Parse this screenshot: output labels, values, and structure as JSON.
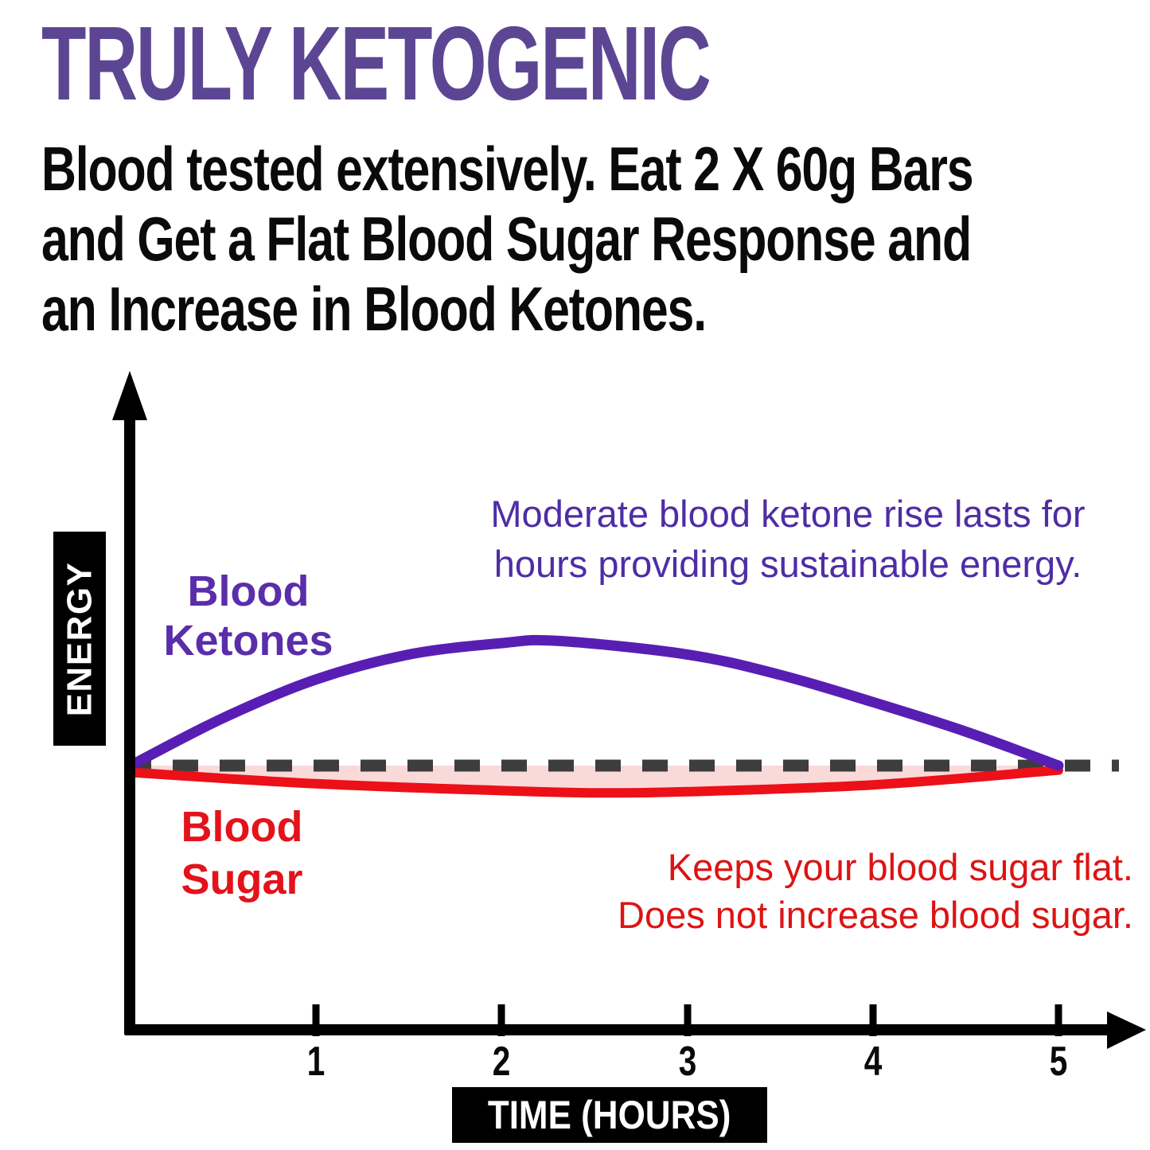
{
  "title": {
    "text": "TRULY KETOGENIC"
  },
  "subtitle": {
    "lines": [
      "Blood tested extensively. Eat 2 X 60g Bars",
      "and Get a Flat Blood Sugar Response and",
      "an Increase in Blood Ketones."
    ]
  },
  "colors": {
    "title_purple": "#5c4694",
    "body_black": "#0a0a0a",
    "ketone_curve_purple": "#581eb4",
    "ketone_label_purple": "#5a2daa",
    "ketone_note_purple": "#4e2da5",
    "sugar_curve_red": "#ec1018",
    "sugar_label_red": "#e4121b",
    "sugar_note_red": "#dc1414",
    "sugar_fill_pink": "#fad9d9",
    "baseline_gray": "#3d3d3d",
    "axis_black": "#000000"
  },
  "chart_data": {
    "type": "line",
    "title": "",
    "xlabel": "TIME (HOURS)",
    "ylabel": "ENERGY",
    "x_ticks": [
      "1",
      "2",
      "3",
      "4",
      "5"
    ],
    "x_range_hours": [
      0,
      5
    ],
    "y_scale": "qualitative energy level relative to dashed fasting baseline (no numeric ticks)",
    "grid": false,
    "legend_position": "labels placed next to curves",
    "baseline": {
      "value": 0,
      "style": "dashed",
      "color": "#3d3d3d"
    },
    "series": [
      {
        "name": "Blood Ketones",
        "color": "#581eb4",
        "x": [
          0,
          0.5,
          1,
          1.5,
          2,
          2.3,
          3,
          3.5,
          4,
          4.5,
          5
        ],
        "y": [
          0,
          0.21,
          0.38,
          0.49,
          0.54,
          0.55,
          0.49,
          0.4,
          0.28,
          0.15,
          0
        ]
      },
      {
        "name": "Blood Sugar",
        "color": "#ec1018",
        "fill_to_baseline": "#fad9d9",
        "x": [
          0,
          1,
          2,
          2.5,
          3,
          4,
          5
        ],
        "y": [
          -0.03,
          -0.08,
          -0.11,
          -0.12,
          -0.115,
          -0.085,
          -0.02
        ]
      }
    ],
    "annotations": [
      {
        "series": "Blood Ketones",
        "color": "#4e2da5",
        "lines": [
          "Moderate blood ketone rise lasts for",
          "hours providing sustainable energy."
        ]
      },
      {
        "series": "Blood Sugar",
        "color": "#dc1414",
        "lines": [
          "Keeps your blood sugar flat.",
          "Does not increase blood sugar."
        ]
      }
    ]
  }
}
